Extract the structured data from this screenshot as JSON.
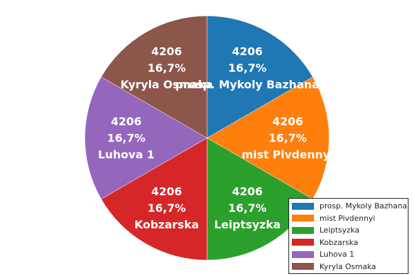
{
  "chart_data": {
    "type": "pie",
    "categories": [
      "prosp. Mykoly Bazhana",
      "mist Pivdennyi",
      "Leiptsyzka",
      "Kobzarska",
      "Luhova 1",
      "Kyryla Osmaka"
    ],
    "values": [
      4206,
      4206,
      4206,
      4206,
      4206,
      4206
    ],
    "percent_labels": [
      "16,7%",
      "16,7%",
      "16,7%",
      "16,7%",
      "16,7%",
      "16,7%"
    ],
    "colors": [
      "#1f77b4",
      "#ff7f0e",
      "#2ca02c",
      "#d62728",
      "#9467bd",
      "#8c564b"
    ],
    "start_angle": "top, clockwise",
    "legend": {
      "position": "bottom-right",
      "entries": [
        "prosp. Mykoly Bazhana",
        "mist Pivdennyi",
        "Leiptsyzka",
        "Kobzarska",
        "Luhova 1",
        "Kyryla Osmaka"
      ]
    }
  }
}
